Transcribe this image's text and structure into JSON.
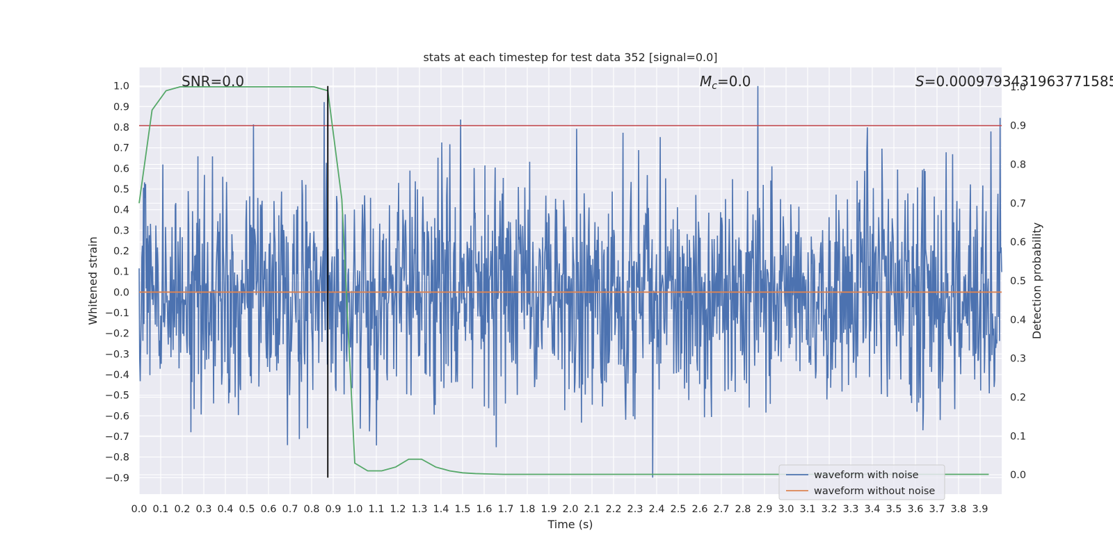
{
  "chart_data": {
    "type": "line",
    "title": "stats at each timestep for test data 352 [signal=0.0]",
    "xlabel": "Time (s)",
    "ylabel": "Whitened strain",
    "ylabel_right": "Detection probability",
    "xlim": [
      0.0,
      4.0
    ],
    "ylim": [
      -0.98,
      1.09
    ],
    "ylim_right": [
      -0.05,
      1.05
    ],
    "xticks": [
      0.0,
      0.1,
      0.2,
      0.3,
      0.4,
      0.5,
      0.6,
      0.7,
      0.8,
      0.9,
      1.0,
      1.1,
      1.2,
      1.3,
      1.4,
      1.5,
      1.6,
      1.7,
      1.8,
      1.9,
      2.0,
      2.1,
      2.2,
      2.3,
      2.4,
      2.5,
      2.6,
      2.7,
      2.8,
      2.9,
      3.0,
      3.1,
      3.2,
      3.3,
      3.4,
      3.5,
      3.6,
      3.7,
      3.8,
      3.9
    ],
    "xtick_labels": [
      "0.0",
      "0.1",
      "0.2",
      "0.3",
      "0.4",
      "0.5",
      "0.6",
      "0.7",
      "0.8",
      "0.9",
      "1.0",
      "1.1",
      "1.2",
      "1.3",
      "1.4",
      "1.5",
      "1.6",
      "1.7",
      "1.8",
      "1.9",
      "2.0",
      "2.1",
      "2.2",
      "2.3",
      "2.4",
      "2.5",
      "2.6",
      "2.7",
      "2.8",
      "2.9",
      "3.0",
      "3.1",
      "3.2",
      "3.3",
      "3.4",
      "3.5",
      "3.6",
      "3.7",
      "3.8",
      "3.9"
    ],
    "yticks": [
      1.0,
      0.9,
      0.8,
      0.7,
      0.6,
      0.5,
      0.4,
      0.3,
      0.2,
      0.1,
      0.0,
      -0.1,
      -0.2,
      -0.3,
      -0.4,
      -0.5,
      -0.6,
      -0.7,
      -0.8,
      -0.9
    ],
    "ytick_labels": [
      "1.0",
      "0.9",
      "0.8",
      "0.7",
      "0.6",
      "0.5",
      "0.4",
      "0.3",
      "0.2",
      "0.1",
      "0.0",
      "−0.1",
      "−0.2",
      "−0.3",
      "−0.4",
      "−0.5",
      "−0.6",
      "−0.7",
      "−0.8",
      "−0.9"
    ],
    "yticks_right": [
      1.0,
      0.9,
      0.8,
      0.7,
      0.6,
      0.5,
      0.4,
      0.3,
      0.2,
      0.1,
      0.0
    ],
    "ytick_labels_right": [
      "1.0",
      "0.9",
      "0.8",
      "0.7",
      "0.6",
      "0.5",
      "0.4",
      "0.3",
      "0.2",
      "0.1",
      "0.0"
    ],
    "annotations": {
      "snr": "SNR=0.0",
      "mc_symbol": "M",
      "mc_sub": "c",
      "mc_value": "=0.0",
      "s_symbol": "S",
      "s_value": "=0.0009793431963771585"
    },
    "series": [
      {
        "name": "waveform with noise",
        "color": "#4c72b0",
        "axis": "left",
        "sample_count": 1600,
        "amplitude_std": 0.28,
        "range": [
          -0.9,
          1.0
        ]
      },
      {
        "name": "waveform without noise",
        "color": "#dd8452",
        "axis": "left",
        "x": [
          0.0,
          4.0
        ],
        "y": [
          0.0,
          0.0
        ]
      },
      {
        "name": "detection probability",
        "color": "#55a868",
        "axis": "right",
        "x": [
          0.0,
          0.06,
          0.125,
          0.19,
          0.25,
          0.31,
          0.375,
          0.44,
          0.5,
          0.56,
          0.625,
          0.69,
          0.75,
          0.81,
          0.875,
          0.94,
          1.0,
          1.06,
          1.125,
          1.19,
          1.25,
          1.31,
          1.375,
          1.44,
          1.5,
          1.56,
          1.625,
          1.69,
          1.75,
          2.0,
          2.5,
          3.0,
          3.5,
          3.94
        ],
        "y": [
          0.7,
          0.94,
          0.99,
          1.0,
          1.0,
          1.0,
          1.0,
          1.0,
          1.0,
          1.0,
          1.0,
          1.0,
          1.0,
          1.0,
          0.99,
          0.71,
          0.03,
          0.01,
          0.01,
          0.02,
          0.04,
          0.04,
          0.02,
          0.01,
          0.005,
          0.003,
          0.002,
          0.001,
          0.001,
          0.001,
          0.001,
          0.001,
          0.001,
          0.001
        ]
      }
    ],
    "threshold": {
      "axis": "right",
      "value": 0.9,
      "color": "#c44e52"
    },
    "marker_line": {
      "x": 0.875,
      "y_from": -0.9,
      "y_to": 1.0,
      "color": "#000000"
    },
    "legend": {
      "location": "lower-right",
      "entries": [
        {
          "label": "waveform with noise",
          "color": "#4c72b0"
        },
        {
          "label": "waveform without noise",
          "color": "#dd8452"
        }
      ]
    },
    "background": "#eaeaf2",
    "grid": true
  }
}
